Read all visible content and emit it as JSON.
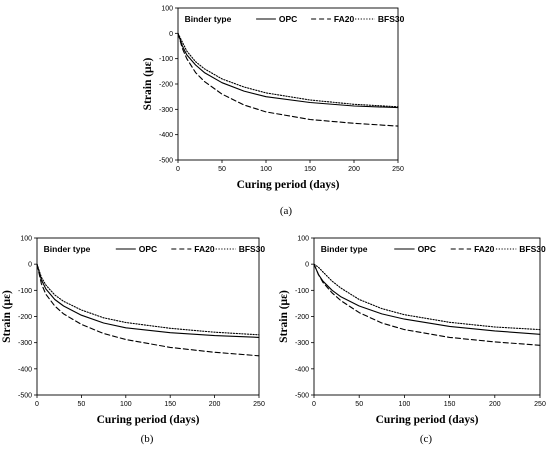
{
  "chart_data": [
    {
      "type": "line",
      "panel_label": "(a)",
      "xlabel": "Curing period (days)",
      "ylabel": "Strain (με)",
      "xlim": [
        0,
        250
      ],
      "ylim": [
        -500,
        100
      ],
      "xticks": [
        0,
        50,
        100,
        150,
        200,
        250
      ],
      "yticks": [
        -500,
        -400,
        -300,
        -200,
        -100,
        0,
        100
      ],
      "legend_title": "Binder type",
      "legend_position": "top",
      "grid": false,
      "x": [
        0,
        5,
        10,
        20,
        30,
        50,
        75,
        100,
        150,
        200,
        250
      ],
      "series": [
        {
          "name": "OPC",
          "style": "solid",
          "values": [
            0,
            -50,
            -85,
            -125,
            -155,
            -195,
            -228,
            -250,
            -273,
            -287,
            -293
          ]
        },
        {
          "name": "FA20",
          "style": "dashed",
          "values": [
            0,
            -60,
            -100,
            -155,
            -190,
            -240,
            -283,
            -310,
            -340,
            -355,
            -366
          ]
        },
        {
          "name": "BFS30",
          "style": "dotted",
          "values": [
            0,
            -35,
            -70,
            -112,
            -140,
            -180,
            -212,
            -235,
            -263,
            -280,
            -290
          ]
        }
      ]
    },
    {
      "type": "line",
      "panel_label": "(b)",
      "xlabel": "Curing period (days)",
      "ylabel": "Strain (με)",
      "xlim": [
        0,
        250
      ],
      "ylim": [
        -500,
        100
      ],
      "xticks": [
        0,
        50,
        100,
        150,
        200,
        250
      ],
      "yticks": [
        -500,
        -400,
        -300,
        -200,
        -100,
        0,
        100
      ],
      "legend_title": "Binder type",
      "legend_position": "top",
      "grid": false,
      "x": [
        0,
        5,
        10,
        20,
        30,
        50,
        75,
        100,
        150,
        200,
        250
      ],
      "series": [
        {
          "name": "OPC",
          "style": "solid",
          "values": [
            0,
            -60,
            -95,
            -135,
            -160,
            -195,
            -225,
            -243,
            -262,
            -273,
            -280
          ]
        },
        {
          "name": "FA20",
          "style": "dashed",
          "values": [
            0,
            -75,
            -115,
            -160,
            -190,
            -230,
            -265,
            -288,
            -318,
            -337,
            -350
          ]
        },
        {
          "name": "BFS30",
          "style": "dotted",
          "values": [
            0,
            -50,
            -80,
            -118,
            -142,
            -175,
            -205,
            -223,
            -245,
            -260,
            -270
          ]
        }
      ]
    },
    {
      "type": "line",
      "panel_label": "(c)",
      "xlabel": "Curing period (days)",
      "ylabel": "Strain (με)",
      "xlim": [
        0,
        250
      ],
      "ylim": [
        -500,
        100
      ],
      "xticks": [
        0,
        50,
        100,
        150,
        200,
        250
      ],
      "yticks": [
        -500,
        -400,
        -300,
        -200,
        -100,
        0,
        100
      ],
      "legend_title": "Binder type",
      "legend_position": "top",
      "grid": false,
      "x": [
        0,
        5,
        10,
        20,
        30,
        50,
        75,
        100,
        150,
        200,
        250
      ],
      "series": [
        {
          "name": "OPC",
          "style": "solid",
          "values": [
            0,
            -40,
            -65,
            -100,
            -125,
            -160,
            -190,
            -210,
            -238,
            -255,
            -268
          ]
        },
        {
          "name": "FA20",
          "style": "dashed",
          "values": [
            0,
            -40,
            -70,
            -110,
            -140,
            -185,
            -225,
            -250,
            -280,
            -297,
            -310
          ]
        },
        {
          "name": "BFS30",
          "style": "dotted",
          "values": [
            0,
            -12,
            -30,
            -65,
            -92,
            -135,
            -170,
            -193,
            -222,
            -240,
            -250
          ]
        }
      ]
    }
  ]
}
